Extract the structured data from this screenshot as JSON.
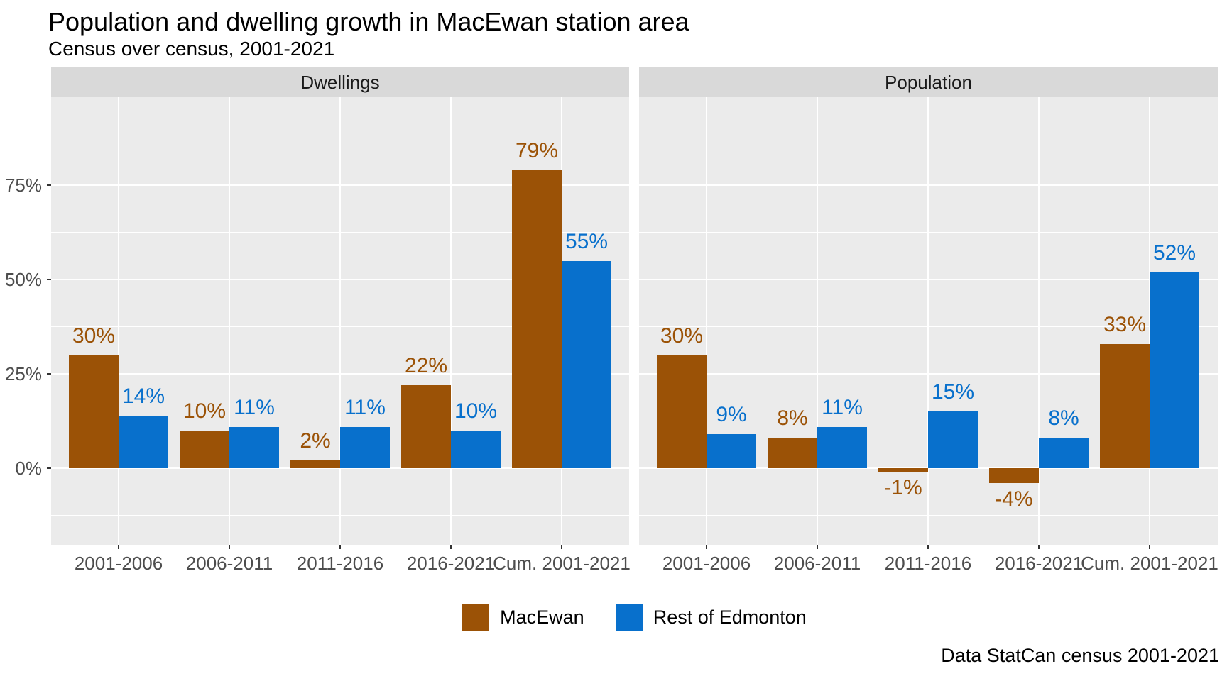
{
  "chart_data": {
    "type": "bar",
    "title": "Population and dwelling growth in MacEwan station area",
    "subtitle": "Census over census, 2001-2021",
    "caption": "Data StatCan census 2001-2021",
    "categories": [
      "2001-2006",
      "2006-2011",
      "2011-2016",
      "2016-2021",
      "Cum. 2001-2021"
    ],
    "facets": [
      {
        "label": "Dwellings",
        "series": [
          {
            "name": "MacEwan",
            "color": "#9B5206",
            "values": [
              30,
              10,
              2,
              22,
              79
            ],
            "labels": [
              "30%",
              "10%",
              "2%",
              "22%",
              "79%"
            ]
          },
          {
            "name": "Rest of Edmonton",
            "color": "#0870CC",
            "values": [
              14,
              11,
              11,
              10,
              55
            ],
            "labels": [
              "14%",
              "11%",
              "11%",
              "10%",
              "55%"
            ]
          }
        ]
      },
      {
        "label": "Population",
        "series": [
          {
            "name": "MacEwan",
            "color": "#9B5206",
            "values": [
              30,
              8,
              -1,
              -4,
              33
            ],
            "labels": [
              "30%",
              "8%",
              "-1%",
              "-4%",
              "33%"
            ]
          },
          {
            "name": "Rest of Edmonton",
            "color": "#0870CC",
            "values": [
              9,
              11,
              15,
              8,
              52
            ],
            "labels": [
              "9%",
              "11%",
              "15%",
              "8%",
              "52%"
            ]
          }
        ]
      }
    ],
    "y_axis": {
      "unit": "%",
      "tick_values": [
        0,
        25,
        50,
        75
      ],
      "tick_labels": [
        "0%",
        "25%",
        "50%",
        "75%"
      ],
      "minor_values": [
        -12.5,
        12.5,
        37.5,
        62.5,
        87.5
      ],
      "range": [
        -20.3,
        98.3
      ]
    },
    "grid": true,
    "legend_position": "bottom",
    "panel_bg": "#EBEBEB",
    "strip_bg": "#D9D9D9",
    "grid_color": "#FFFFFF",
    "axis_text_color": "#4D4D4D"
  },
  "legend": {
    "items": [
      {
        "label": "MacEwan",
        "color": "#9B5206"
      },
      {
        "label": "Rest of Edmonton",
        "color": "#0870CC"
      }
    ]
  }
}
